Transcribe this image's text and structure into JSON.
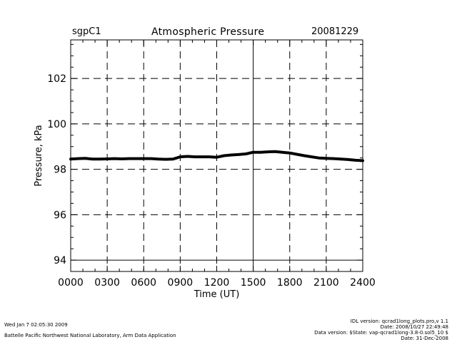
{
  "header": {
    "site": "sgpC1",
    "title": "Atmospheric Pressure",
    "date": "20081229"
  },
  "footer": {
    "run_time": "Wed Jan  7 02:05:30 2009",
    "lab": "Battelle Pacific Northwest National Laboratory, Arm Data Application",
    "idl_version": "IDL version: qcrad1long_plots.pro,v 1.1",
    "idl_date": "Date: 2008/10/27 22:49:48",
    "data_version": "Data version: $State: vap-qcrad1long-3.8-0.sol5_10 $",
    "data_date": "Date: 31-Dec-2008"
  },
  "chart_data": {
    "type": "line",
    "title": "Atmospheric Pressure",
    "xlabel": "Time (UT)",
    "ylabel": "Pressure, kPa",
    "xlim": [
      0,
      2400
    ],
    "ylim": [
      93.5,
      103.7
    ],
    "x_ticks": [
      0,
      300,
      600,
      900,
      1200,
      1500,
      1800,
      2100,
      2400
    ],
    "x_tick_labels": [
      "0000",
      "0300",
      "0600",
      "0900",
      "1200",
      "1500",
      "1800",
      "2100",
      "2400"
    ],
    "y_ticks": [
      94,
      96,
      98,
      100,
      102
    ],
    "y_tick_labels": [
      "94",
      "96",
      "98",
      "100",
      "102"
    ],
    "grid": true,
    "series": [
      {
        "color": "#000000",
        "x": [
          0,
          60,
          120,
          180,
          240,
          300,
          360,
          420,
          480,
          540,
          600,
          660,
          720,
          780,
          840,
          900,
          960,
          1020,
          1080,
          1140,
          1200,
          1260,
          1320,
          1380,
          1440,
          1500,
          1560,
          1620,
          1680,
          1740,
          1800,
          1860,
          1920,
          1980,
          2040,
          2100,
          2160,
          2220,
          2280,
          2340,
          2400
        ],
        "y": [
          98.45,
          98.47,
          98.48,
          98.45,
          98.45,
          98.46,
          98.47,
          98.46,
          98.47,
          98.47,
          98.47,
          98.47,
          98.45,
          98.44,
          98.45,
          98.55,
          98.57,
          98.55,
          98.55,
          98.55,
          98.53,
          98.6,
          98.63,
          98.65,
          98.68,
          98.75,
          98.75,
          98.77,
          98.78,
          98.75,
          98.72,
          98.66,
          98.6,
          98.55,
          98.5,
          98.48,
          98.47,
          98.45,
          98.43,
          98.4,
          98.38
        ]
      }
    ]
  }
}
